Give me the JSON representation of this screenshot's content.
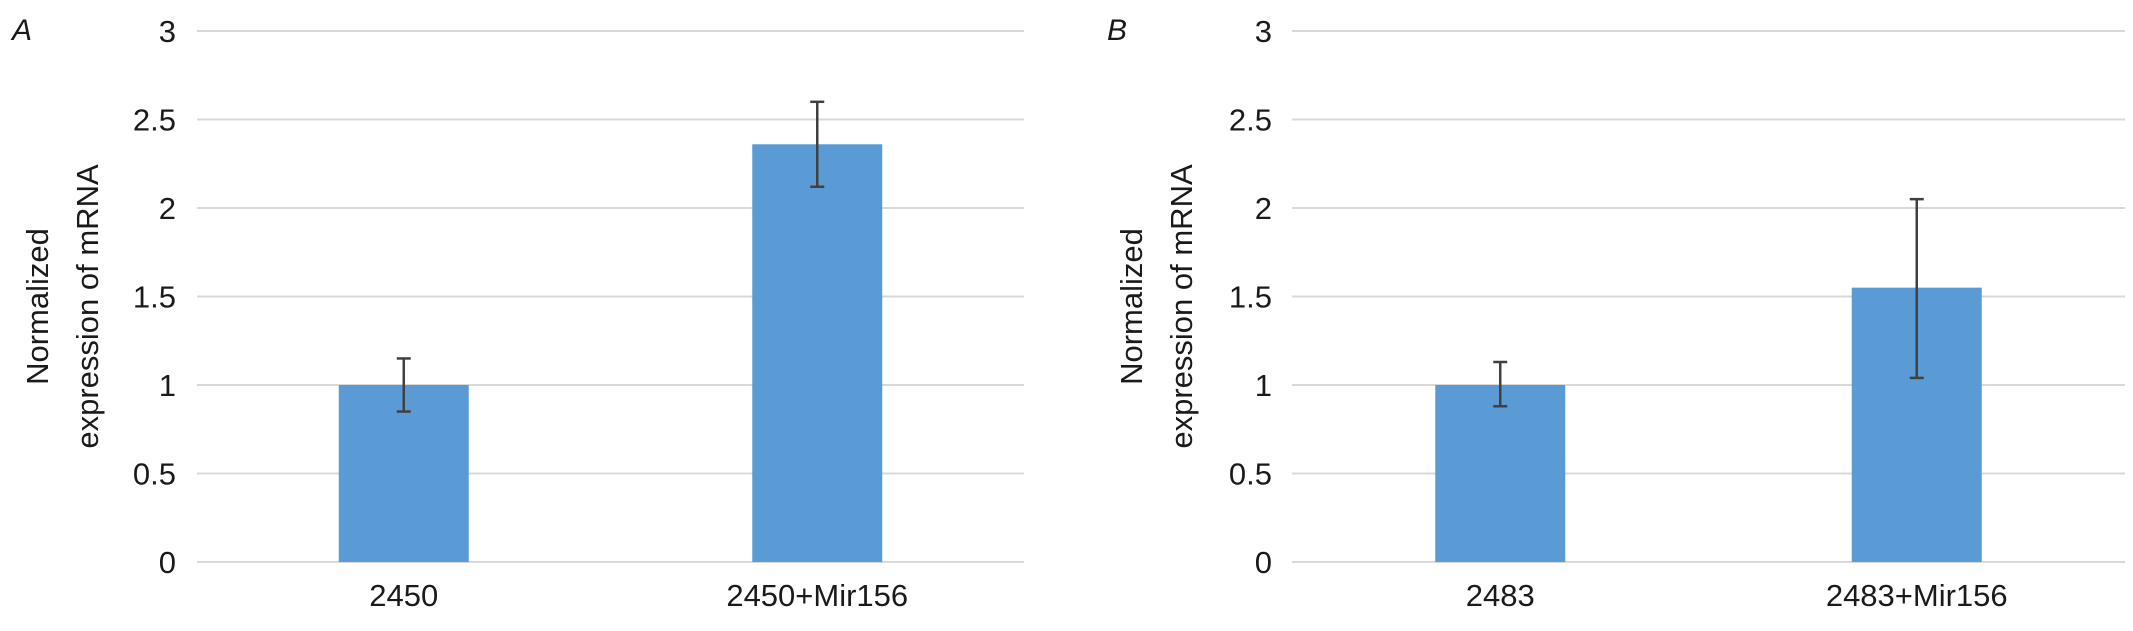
{
  "chart_data": [
    {
      "type": "bar",
      "panel_label": "A",
      "ylabel_lines": [
        "Normalized",
        "expression of mRNA"
      ],
      "categories": [
        "2450",
        "2450+Mir156"
      ],
      "values": [
        1.0,
        2.36
      ],
      "error_low": [
        0.85,
        2.12
      ],
      "error_high": [
        1.15,
        2.6
      ],
      "ylim": [
        0,
        3
      ],
      "yticks": [
        "0",
        "0.5",
        "1",
        "1.5",
        "2",
        "2.5",
        "3"
      ],
      "grid": true,
      "bar_color": "#5B9BD5",
      "grid_color": "#D9D9D9",
      "error_color": "#404040"
    },
    {
      "type": "bar",
      "panel_label": "B",
      "ylabel_lines": [
        "Normalized",
        "expression of mRNA"
      ],
      "categories": [
        "2483",
        "2483+Mir156"
      ],
      "values": [
        1.0,
        1.55
      ],
      "error_low": [
        0.88,
        1.04
      ],
      "error_high": [
        1.13,
        2.05
      ],
      "ylim": [
        0,
        3
      ],
      "yticks": [
        "0",
        "0.5",
        "1",
        "1.5",
        "2",
        "2.5",
        "3"
      ],
      "grid": true,
      "bar_color": "#5B9BD5",
      "grid_color": "#D9D9D9",
      "error_color": "#404040"
    }
  ]
}
